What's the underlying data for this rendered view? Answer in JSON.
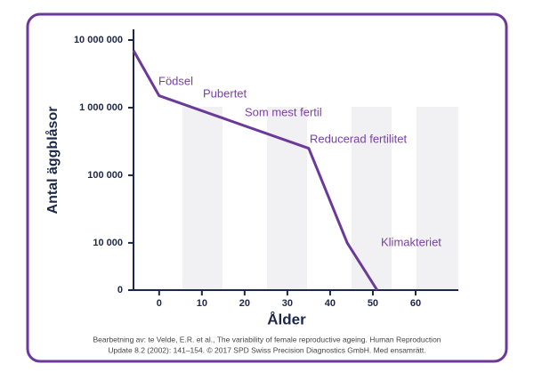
{
  "chart_data": {
    "type": "line",
    "x": [
      -6,
      0,
      35,
      44,
      51
    ],
    "values": [
      7000000,
      1500000,
      250000,
      10000,
      0
    ],
    "color": "#6b3a98",
    "xlabel": "Ålder",
    "ylabel": "Antal äggblåsor",
    "xlim": [
      -6,
      70
    ],
    "xticks": [
      0,
      10,
      20,
      30,
      40,
      50,
      60
    ],
    "ylim": [
      2000,
      10000000
    ],
    "log_y": true,
    "yticks": [
      {
        "value": 10000000,
        "label": "10 000 000"
      },
      {
        "value": 1000000,
        "label": "1 000 000"
      },
      {
        "value": 100000,
        "label": "100 000"
      },
      {
        "value": 10000,
        "label": "10 000"
      },
      0
    ],
    "annotations": [
      "Födsel",
      "Pubertet",
      "Som mest fertil",
      "Reducerad fertilitet",
      "Klimakteriet"
    ],
    "source": [
      "Bearbetning av: te Velde, E.R. et al., The variability of female reproductive ageing. Human Reproduction",
      "Update 8.2 (2002): 141–154. © 2017 SPD Swiss Precision Diagnostics GmbH. Med ensamrätt."
    ]
  }
}
